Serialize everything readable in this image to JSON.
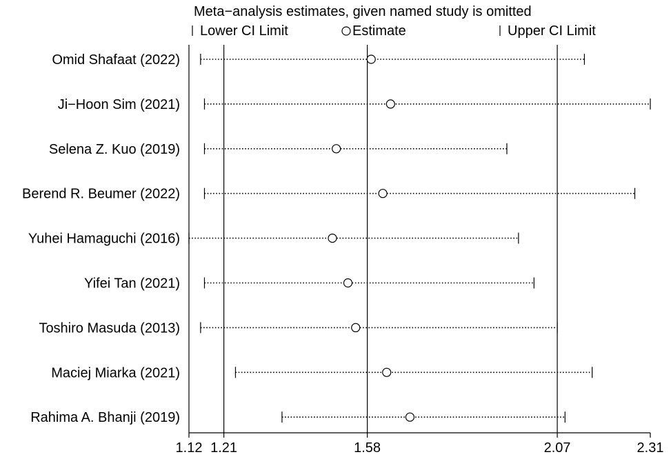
{
  "chart_data": {
    "type": "forest",
    "title": "Meta−analysis estimates, given named study is omitted",
    "legend": {
      "lower": "Lower CI Limit",
      "estimate": "Estimate",
      "upper": "Upper CI Limit",
      "placement": "top"
    },
    "xlim": [
      1.12,
      2.31
    ],
    "x_ticks": [
      1.12,
      1.21,
      1.58,
      2.07,
      2.31
    ],
    "x_tick_labels": [
      "1.12",
      "1.21",
      "1.58",
      "2.07",
      "2.31"
    ],
    "reference_lines": [
      1.21,
      1.58,
      2.07
    ],
    "studies": [
      {
        "label": "Omid Shafaat (2022)",
        "lower": 1.15,
        "estimate": 1.59,
        "upper": 2.14
      },
      {
        "label": "Ji−Hoon Sim (2021)",
        "lower": 1.16,
        "estimate": 1.64,
        "upper": 2.31
      },
      {
        "label": "Selena Z. Kuo (2019)",
        "lower": 1.16,
        "estimate": 1.5,
        "upper": 1.94
      },
      {
        "label": "Berend R. Beumer (2022)",
        "lower": 1.16,
        "estimate": 1.62,
        "upper": 2.27
      },
      {
        "label": "Yuhei Hamaguchi (2016)",
        "lower": 1.12,
        "estimate": 1.49,
        "upper": 1.97
      },
      {
        "label": "Yifei Tan (2021)",
        "lower": 1.16,
        "estimate": 1.53,
        "upper": 2.01
      },
      {
        "label": "Toshiro Masuda (2013)",
        "lower": 1.15,
        "estimate": 1.55,
        "upper": 2.07
      },
      {
        "label": "Maciej Miarka (2021)",
        "lower": 1.24,
        "estimate": 1.63,
        "upper": 2.16
      },
      {
        "label": "Rahima A. Bhanji (2019)",
        "lower": 1.36,
        "estimate": 1.69,
        "upper": 2.09
      }
    ]
  }
}
